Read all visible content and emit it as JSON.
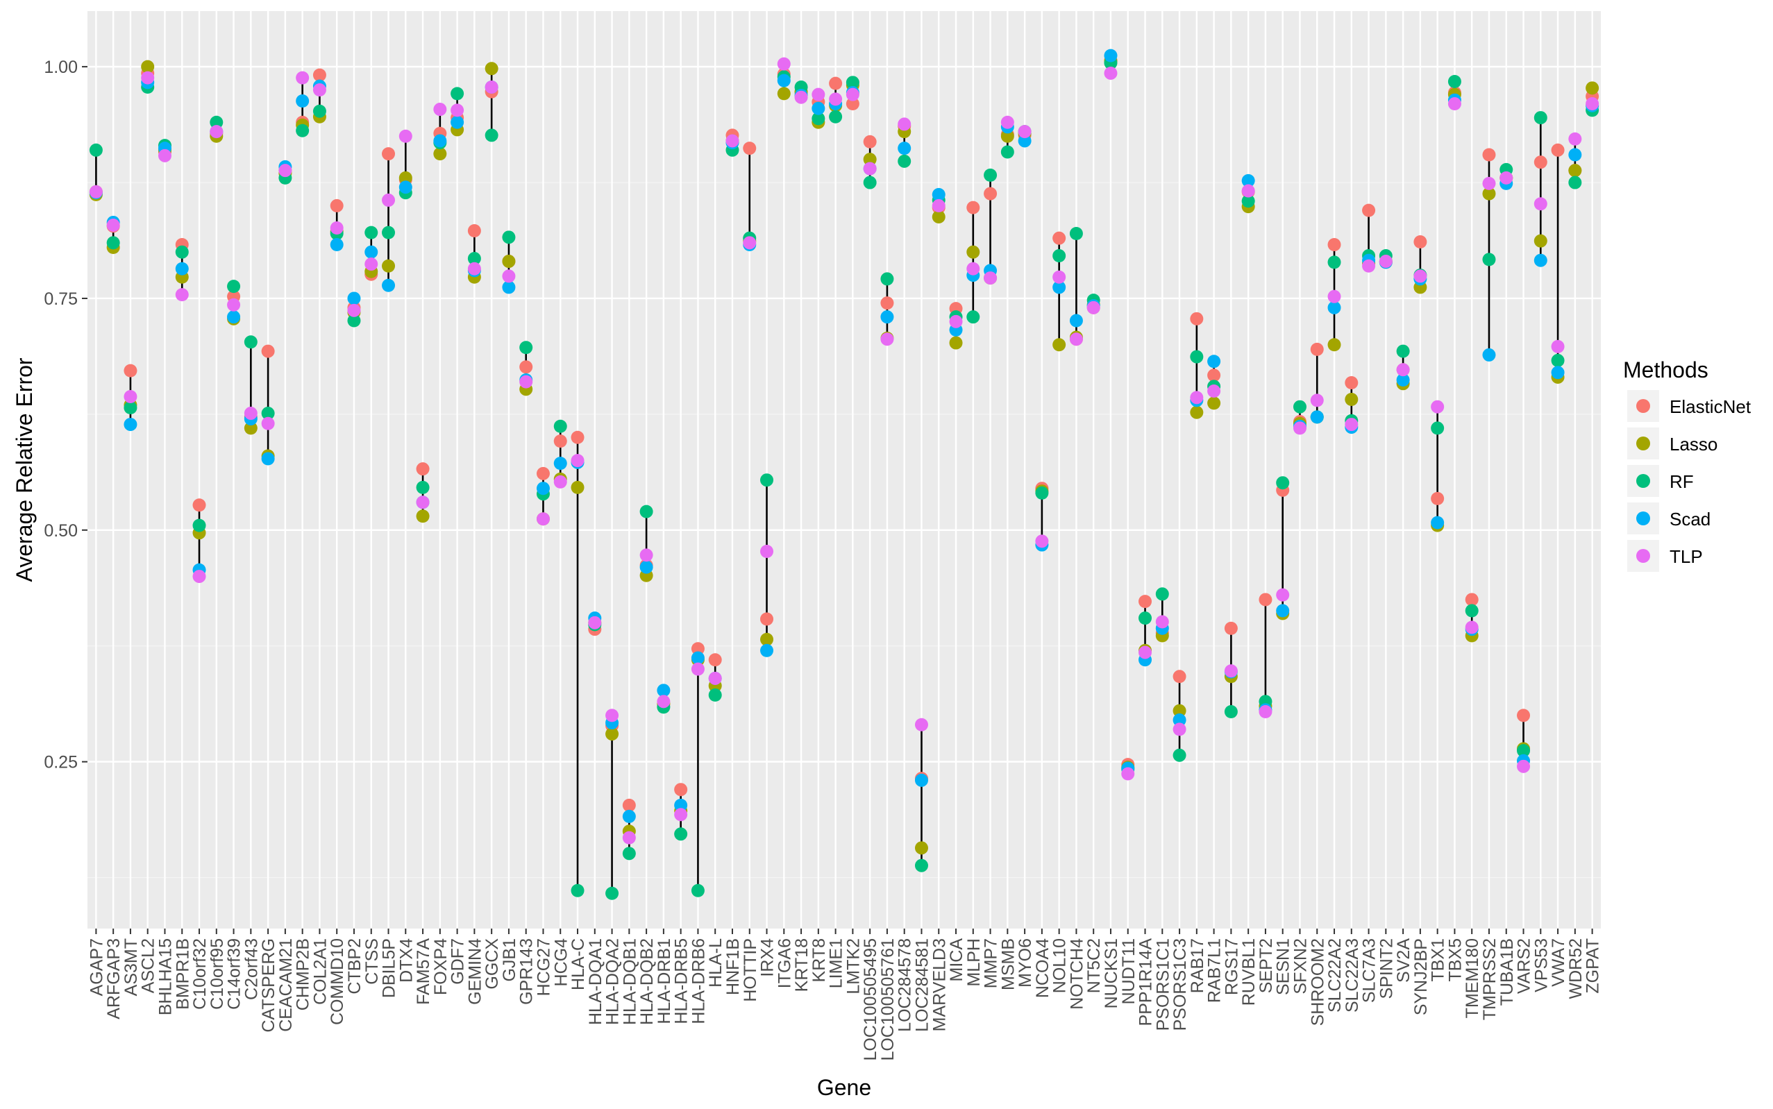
{
  "chart_data": {
    "type": "scatter",
    "xlabel": "Gene",
    "ylabel": "Average Relative Error",
    "ylim": [
      0.07,
      1.06
    ],
    "yticks": [
      0.25,
      0.5,
      0.75,
      1.0
    ],
    "ytick_labels": [
      "0.25",
      "0.50",
      "0.75",
      "1.00"
    ],
    "grid": true,
    "legend_position": "right",
    "legend_title": "Methods",
    "categories": [
      "AGAP7",
      "ARFGAP3",
      "AS3MT",
      "ASCL2",
      "BHLHA15",
      "BMPR1B",
      "C10orf32",
      "C10orf95",
      "C14orf39",
      "C2orf43",
      "CATSPERG",
      "CEACAM21",
      "CHMP2B",
      "COL2A1",
      "COMMD10",
      "CTBP2",
      "CTSS",
      "DBIL5P",
      "DTX4",
      "FAM57A",
      "FOXP4",
      "GDF7",
      "GEMIN4",
      "GGCX",
      "GJB1",
      "GPR143",
      "HCG27",
      "HCG4",
      "HLA-C",
      "HLA-DQA1",
      "HLA-DQA2",
      "HLA-DQB1",
      "HLA-DQB2",
      "HLA-DRB1",
      "HLA-DRB5",
      "HLA-DRB6",
      "HLA-L",
      "HNF1B",
      "HOTTIP",
      "IRX4",
      "ITGA6",
      "KRT18",
      "KRT8",
      "LIME1",
      "LMTK2",
      "LOC100505495",
      "LOC100505761",
      "LOC284578",
      "LOC284581",
      "MARVELD3",
      "MICA",
      "MLPH",
      "MMP7",
      "MSMB",
      "MYO6",
      "NCOA4",
      "NOL10",
      "NOTCH4",
      "NT5C2",
      "NUCKS1",
      "NUDT11",
      "PPP1R14A",
      "PSORS1C1",
      "PSORS1C3",
      "RAB17",
      "RAB7L1",
      "RGS17",
      "RUVBL1",
      "SEPT2",
      "SESN1",
      "SFXN2",
      "SHROOM2",
      "SLC22A2",
      "SLC22A3",
      "SLC7A3",
      "SPINT2",
      "SV2A",
      "SYNJ2BP",
      "TBX1",
      "TBX5",
      "TMEM180",
      "TMPRSS2",
      "TUBA1B",
      "VARS2",
      "VPS53",
      "VWA7",
      "WDR52",
      "ZGPAT"
    ],
    "series": [
      {
        "name": "ElasticNet",
        "color": "#F8766D",
        "values": [
          0.865,
          0.828,
          0.672,
          0.993,
          0.908,
          0.808,
          0.527,
          0.928,
          0.752,
          0.622,
          0.693,
          0.888,
          0.94,
          0.991,
          0.85,
          0.74,
          0.776,
          0.906,
          0.878,
          0.566,
          0.928,
          0.945,
          0.823,
          0.973,
          0.79,
          0.676,
          0.561,
          0.596,
          0.6,
          0.393,
          0.289,
          0.203,
          0.462,
          0.312,
          0.22,
          0.372,
          0.36,
          0.926,
          0.912,
          0.404,
          0.992,
          0.972,
          0.962,
          0.982,
          0.96,
          0.919,
          0.745,
          0.936,
          0.232,
          0.848,
          0.739,
          0.848,
          0.863,
          0.927,
          0.926,
          0.545,
          0.815,
          0.706,
          0.74,
          1.007,
          0.247,
          0.423,
          0.389,
          0.342,
          0.728,
          0.667,
          0.394,
          0.865,
          0.425,
          0.543,
          0.617,
          0.695,
          0.808,
          0.659,
          0.845,
          0.789,
          0.673,
          0.811,
          0.534,
          0.972,
          0.425,
          0.905,
          0.88,
          0.3,
          0.897,
          0.91,
          0.888,
          0.968
        ]
      },
      {
        "name": "Lasso",
        "color": "#A3A500",
        "values": [
          0.862,
          0.805,
          0.635,
          1.0,
          0.91,
          0.773,
          0.497,
          0.925,
          0.728,
          0.61,
          0.58,
          0.885,
          0.937,
          0.946,
          0.822,
          0.735,
          0.779,
          0.785,
          0.88,
          0.515,
          0.906,
          0.932,
          0.773,
          0.998,
          0.79,
          0.652,
          0.512,
          0.555,
          0.546,
          0.4,
          0.28,
          0.175,
          0.451,
          0.313,
          0.197,
          0.36,
          0.332,
          0.92,
          0.812,
          0.382,
          0.971,
          0.973,
          0.94,
          0.958,
          0.98,
          0.9,
          0.707,
          0.93,
          0.157,
          0.838,
          0.702,
          0.8,
          0.772,
          0.925,
          0.928,
          0.542,
          0.7,
          0.708,
          0.743,
          1.006,
          0.244,
          0.37,
          0.386,
          0.305,
          0.627,
          0.637,
          0.342,
          0.849,
          0.31,
          0.41,
          0.615,
          0.622,
          0.7,
          0.641,
          0.788,
          0.79,
          0.658,
          0.762,
          0.505,
          0.97,
          0.386,
          0.863,
          0.88,
          0.264,
          0.812,
          0.665,
          0.888,
          0.977
        ]
      },
      {
        "name": "RF",
        "color": "#00BF7D",
        "values": [
          0.91,
          0.81,
          0.632,
          0.978,
          0.915,
          0.8,
          0.505,
          0.94,
          0.763,
          0.703,
          0.626,
          0.88,
          0.931,
          0.952,
          0.82,
          0.726,
          0.821,
          0.821,
          0.864,
          0.546,
          0.918,
          0.971,
          0.793,
          0.926,
          0.816,
          0.697,
          0.539,
          0.612,
          0.111,
          0.398,
          0.108,
          0.151,
          0.52,
          0.309,
          0.172,
          0.111,
          0.322,
          0.91,
          0.815,
          0.554,
          0.989,
          0.978,
          0.944,
          0.946,
          0.983,
          0.875,
          0.771,
          0.898,
          0.138,
          0.856,
          0.73,
          0.73,
          0.883,
          0.908,
          0.93,
          0.54,
          0.796,
          0.82,
          0.748,
          1.004,
          0.242,
          0.405,
          0.431,
          0.257,
          0.687,
          0.655,
          0.304,
          0.855,
          0.315,
          0.551,
          0.633,
          0.622,
          0.789,
          0.618,
          0.796,
          0.796,
          0.693,
          0.775,
          0.61,
          0.984,
          0.413,
          0.792,
          0.889,
          0.262,
          0.945,
          0.683,
          0.875,
          0.953
        ]
      },
      {
        "name": "Scad",
        "color": "#00B0F6",
        "values": [
          0.864,
          0.832,
          0.614,
          0.983,
          0.912,
          0.782,
          0.457,
          0.93,
          0.73,
          0.62,
          0.577,
          0.892,
          0.963,
          0.979,
          0.808,
          0.75,
          0.8,
          0.764,
          0.87,
          0.53,
          0.92,
          0.94,
          0.78,
          0.978,
          0.762,
          0.662,
          0.545,
          0.572,
          0.573,
          0.405,
          0.292,
          0.191,
          0.46,
          0.327,
          0.203,
          0.362,
          0.34,
          0.918,
          0.808,
          0.37,
          0.985,
          0.969,
          0.955,
          0.96,
          0.972,
          0.89,
          0.73,
          0.912,
          0.23,
          0.862,
          0.716,
          0.775,
          0.78,
          0.935,
          0.92,
          0.484,
          0.762,
          0.726,
          0.742,
          1.012,
          0.243,
          0.36,
          0.394,
          0.295,
          0.64,
          0.682,
          0.347,
          0.877,
          0.306,
          0.413,
          0.612,
          0.622,
          0.74,
          0.611,
          0.791,
          0.789,
          0.662,
          0.771,
          0.508,
          0.964,
          0.393,
          0.689,
          0.874,
          0.251,
          0.791,
          0.67,
          0.905,
          0.958
        ]
      },
      {
        "name": "TLP",
        "color": "#E76BF3",
        "values": [
          0.865,
          0.829,
          0.644,
          0.988,
          0.904,
          0.754,
          0.45,
          0.93,
          0.743,
          0.626,
          0.615,
          0.888,
          0.988,
          0.975,
          0.826,
          0.737,
          0.787,
          0.856,
          0.925,
          0.53,
          0.954,
          0.953,
          0.782,
          0.978,
          0.774,
          0.66,
          0.512,
          0.552,
          0.575,
          0.4,
          0.3,
          0.168,
          0.473,
          0.315,
          0.193,
          0.35,
          0.34,
          0.92,
          0.81,
          0.477,
          1.003,
          0.967,
          0.97,
          0.965,
          0.97,
          0.89,
          0.706,
          0.938,
          0.29,
          0.85,
          0.725,
          0.782,
          0.772,
          0.94,
          0.93,
          0.488,
          0.773,
          0.706,
          0.74,
          0.993,
          0.237,
          0.368,
          0.401,
          0.285,
          0.643,
          0.65,
          0.348,
          0.866,
          0.304,
          0.43,
          0.61,
          0.64,
          0.752,
          0.614,
          0.785,
          0.79,
          0.673,
          0.774,
          0.633,
          0.96,
          0.395,
          0.874,
          0.88,
          0.245,
          0.852,
          0.698,
          0.922,
          0.96
        ]
      }
    ]
  }
}
